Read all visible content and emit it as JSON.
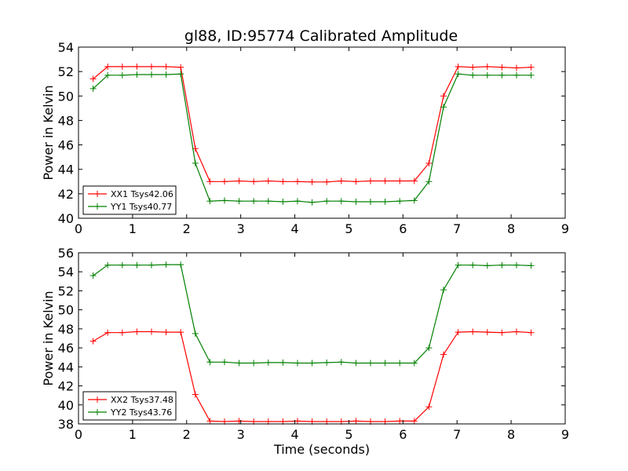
{
  "figure": {
    "title": "gl88, ID:95774 Calibrated Amplitude"
  },
  "chart_data": [
    {
      "type": "line",
      "title": "gl88, ID:95774 Calibrated Amplitude",
      "xlabel": "",
      "ylabel": "Power in Kelvin",
      "xlim": [
        0,
        9
      ],
      "ylim": [
        40,
        54
      ],
      "xticks": [
        0,
        1,
        2,
        3,
        4,
        5,
        6,
        7,
        8,
        9
      ],
      "yticks": [
        40,
        42,
        44,
        46,
        48,
        50,
        52,
        54
      ],
      "legend_position": "lower-left",
      "grid": false,
      "x": [
        0.27,
        0.54,
        0.81,
        1.08,
        1.35,
        1.62,
        1.89,
        2.16,
        2.43,
        2.7,
        2.97,
        3.24,
        3.51,
        3.78,
        4.05,
        4.32,
        4.59,
        4.86,
        5.13,
        5.4,
        5.67,
        5.94,
        6.21,
        6.48,
        6.75,
        7.02,
        7.29,
        7.56,
        7.83,
        8.1,
        8.37
      ],
      "series": [
        {
          "name": "XX1 Tsys42.06",
          "color": "#ff0000",
          "values": [
            51.4,
            52.4,
            52.4,
            52.4,
            52.4,
            52.4,
            52.35,
            45.7,
            43.0,
            43.0,
            43.05,
            43.0,
            43.05,
            43.0,
            43.0,
            42.97,
            42.97,
            43.05,
            43.0,
            43.05,
            43.05,
            43.05,
            43.05,
            44.5,
            50.0,
            52.4,
            52.35,
            52.4,
            52.35,
            52.3,
            52.35
          ]
        },
        {
          "name": "YY1 Tsys40.77",
          "color": "#008000",
          "values": [
            50.6,
            51.7,
            51.7,
            51.75,
            51.75,
            51.75,
            51.8,
            44.5,
            41.4,
            41.45,
            41.4,
            41.4,
            41.4,
            41.35,
            41.4,
            41.3,
            41.4,
            41.4,
            41.35,
            41.35,
            41.35,
            41.4,
            41.45,
            43.0,
            49.1,
            51.8,
            51.7,
            51.7,
            51.7,
            51.7,
            51.7
          ]
        }
      ]
    },
    {
      "type": "line",
      "title": "",
      "xlabel": "Time (seconds)",
      "ylabel": "Power in Kelvin",
      "xlim": [
        0,
        9
      ],
      "ylim": [
        38,
        56
      ],
      "xticks": [
        0,
        1,
        2,
        3,
        4,
        5,
        6,
        7,
        8,
        9
      ],
      "yticks": [
        38,
        40,
        42,
        44,
        46,
        48,
        50,
        52,
        54,
        56
      ],
      "legend_position": "lower-left",
      "grid": false,
      "x": [
        0.27,
        0.54,
        0.81,
        1.08,
        1.35,
        1.62,
        1.89,
        2.16,
        2.43,
        2.7,
        2.97,
        3.24,
        3.51,
        3.78,
        4.05,
        4.32,
        4.59,
        4.86,
        5.13,
        5.4,
        5.67,
        5.94,
        6.21,
        6.48,
        6.75,
        7.02,
        7.29,
        7.56,
        7.83,
        8.1,
        8.37
      ],
      "series": [
        {
          "name": "XX2 Tsys37.48",
          "color": "#ff0000",
          "values": [
            46.7,
            47.6,
            47.6,
            47.7,
            47.7,
            47.65,
            47.65,
            41.1,
            38.3,
            38.25,
            38.3,
            38.25,
            38.25,
            38.25,
            38.3,
            38.25,
            38.25,
            38.25,
            38.3,
            38.25,
            38.25,
            38.3,
            38.3,
            39.8,
            45.3,
            47.65,
            47.7,
            47.65,
            47.6,
            47.7,
            47.6
          ]
        },
        {
          "name": "YY2 Tsys43.76",
          "color": "#008000",
          "values": [
            53.6,
            54.7,
            54.7,
            54.7,
            54.7,
            54.75,
            54.75,
            47.5,
            44.5,
            44.5,
            44.4,
            44.4,
            44.45,
            44.45,
            44.4,
            44.4,
            44.45,
            44.5,
            44.4,
            44.4,
            44.4,
            44.4,
            44.4,
            46.0,
            52.1,
            54.7,
            54.7,
            54.65,
            54.7,
            54.7,
            54.65
          ]
        }
      ]
    }
  ]
}
